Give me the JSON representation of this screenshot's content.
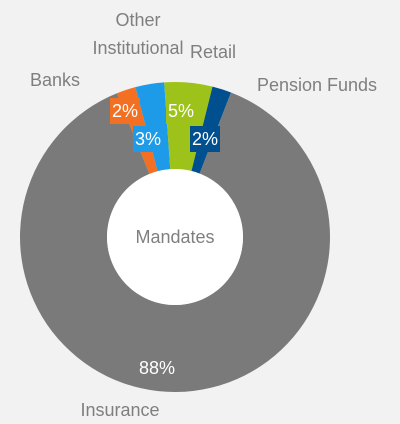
{
  "chart_data": {
    "type": "donut",
    "center_label": "Mandates",
    "categories": [
      "Banks",
      "Other Institutional",
      "Retail",
      "Pension Funds",
      "Insurance"
    ],
    "values": [
      2,
      3,
      5,
      2,
      88
    ],
    "value_labels": [
      "2%",
      "3%",
      "5%",
      "2%",
      "88%"
    ],
    "colors": [
      "#f36f21",
      "#1e9be8",
      "#9dc31b",
      "#00508f",
      "#7a7a7a"
    ]
  }
}
